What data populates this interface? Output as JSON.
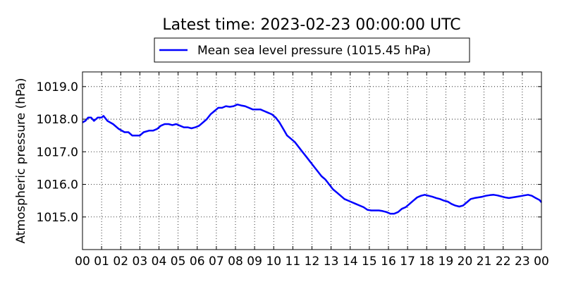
{
  "chart_data": {
    "type": "line",
    "title": "Latest time: 2023-02-23 00:00:00 UTC",
    "xlabel": "",
    "ylabel": "Atmospheric pressure (hPa)",
    "xlim": [
      0,
      24
    ],
    "ylim": [
      1014.0,
      1019.45
    ],
    "grid": true,
    "legend_position": "top-center",
    "x_ticks": [
      0,
      1,
      2,
      3,
      4,
      5,
      6,
      7,
      8,
      9,
      10,
      11,
      12,
      13,
      14,
      15,
      16,
      17,
      18,
      19,
      20,
      21,
      22,
      23,
      24
    ],
    "x_tick_labels": [
      "00",
      "01",
      "02",
      "03",
      "04",
      "05",
      "06",
      "07",
      "08",
      "09",
      "10",
      "11",
      "12",
      "13",
      "14",
      "15",
      "16",
      "17",
      "18",
      "19",
      "20",
      "21",
      "22",
      "23",
      "00"
    ],
    "y_ticks": [
      1015.0,
      1016.0,
      1017.0,
      1018.0,
      1019.0
    ],
    "y_tick_labels": [
      "1015.0",
      "1016.0",
      "1017.0",
      "1018.0",
      "1019.0"
    ],
    "series": [
      {
        "name": "Mean sea level pressure (1015.45 hPa)",
        "color": "#0000ff",
        "x": [
          0,
          0.15,
          0.3,
          0.45,
          0.6,
          0.8,
          1.0,
          1.1,
          1.3,
          1.6,
          1.9,
          2.2,
          2.4,
          2.6,
          2.8,
          3.0,
          3.2,
          3.5,
          3.7,
          3.9,
          4.1,
          4.3,
          4.5,
          4.7,
          4.9,
          5.1,
          5.3,
          5.5,
          5.7,
          5.9,
          6.1,
          6.3,
          6.5,
          6.7,
          6.9,
          7.1,
          7.3,
          7.5,
          7.7,
          7.9,
          8.1,
          8.3,
          8.5,
          8.7,
          8.9,
          9.1,
          9.3,
          9.5,
          9.7,
          9.9,
          10.1,
          10.3,
          10.5,
          10.7,
          10.9,
          11.1,
          11.3,
          11.5,
          11.7,
          11.9,
          12.1,
          12.3,
          12.5,
          12.7,
          12.9,
          13.1,
          13.3,
          13.5,
          13.7,
          13.9,
          14.1,
          14.3,
          14.5,
          14.7,
          14.9,
          15.1,
          15.3,
          15.5,
          15.7,
          15.9,
          16.1,
          16.3,
          16.5,
          16.7,
          16.9,
          17.1,
          17.3,
          17.5,
          17.7,
          17.9,
          18.1,
          18.3,
          18.5,
          18.7,
          18.9,
          19.1,
          19.3,
          19.5,
          19.7,
          19.9,
          20.1,
          20.3,
          20.5,
          20.7,
          20.9,
          21.1,
          21.3,
          21.5,
          21.7,
          21.9,
          22.1,
          22.3,
          22.5,
          22.7,
          22.9,
          23.1,
          23.3,
          23.5,
          23.7,
          23.9,
          24.0
        ],
        "values": [
          1017.9,
          1017.95,
          1018.05,
          1018.05,
          1017.95,
          1018.05,
          1018.05,
          1018.1,
          1017.95,
          1017.85,
          1017.7,
          1017.6,
          1017.6,
          1017.5,
          1017.5,
          1017.5,
          1017.6,
          1017.65,
          1017.65,
          1017.7,
          1017.8,
          1017.85,
          1017.85,
          1017.82,
          1017.85,
          1017.8,
          1017.75,
          1017.75,
          1017.72,
          1017.75,
          1017.8,
          1017.9,
          1018.0,
          1018.15,
          1018.25,
          1018.35,
          1018.35,
          1018.4,
          1018.38,
          1018.4,
          1018.45,
          1018.42,
          1018.4,
          1018.35,
          1018.3,
          1018.3,
          1018.3,
          1018.25,
          1018.2,
          1018.15,
          1018.05,
          1017.9,
          1017.7,
          1017.5,
          1017.4,
          1017.3,
          1017.15,
          1017.0,
          1016.85,
          1016.7,
          1016.55,
          1016.4,
          1016.25,
          1016.15,
          1016.0,
          1015.85,
          1015.75,
          1015.65,
          1015.55,
          1015.5,
          1015.45,
          1015.4,
          1015.35,
          1015.3,
          1015.22,
          1015.2,
          1015.2,
          1015.2,
          1015.18,
          1015.15,
          1015.1,
          1015.1,
          1015.15,
          1015.25,
          1015.3,
          1015.4,
          1015.5,
          1015.6,
          1015.65,
          1015.68,
          1015.65,
          1015.62,
          1015.58,
          1015.55,
          1015.5,
          1015.47,
          1015.4,
          1015.35,
          1015.32,
          1015.35,
          1015.45,
          1015.55,
          1015.58,
          1015.6,
          1015.62,
          1015.65,
          1015.67,
          1015.68,
          1015.66,
          1015.63,
          1015.6,
          1015.58,
          1015.6,
          1015.62,
          1015.64,
          1015.66,
          1015.68,
          1015.65,
          1015.58,
          1015.52,
          1015.45
        ]
      }
    ]
  }
}
